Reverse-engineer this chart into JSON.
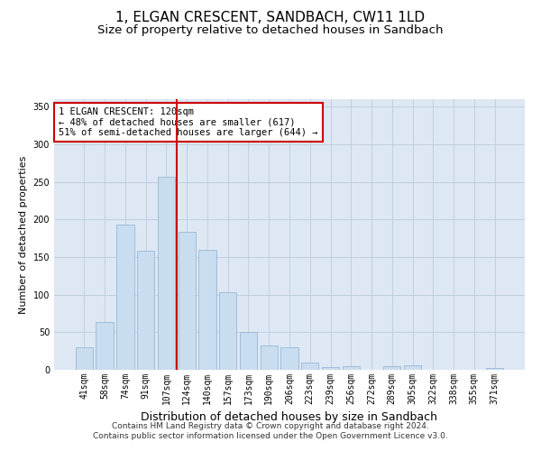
{
  "title": "1, ELGAN CRESCENT, SANDBACH, CW11 1LD",
  "subtitle": "Size of property relative to detached houses in Sandbach",
  "xlabel": "Distribution of detached houses by size in Sandbach",
  "ylabel": "Number of detached properties",
  "categories": [
    "41sqm",
    "58sqm",
    "74sqm",
    "91sqm",
    "107sqm",
    "124sqm",
    "140sqm",
    "157sqm",
    "173sqm",
    "190sqm",
    "206sqm",
    "223sqm",
    "239sqm",
    "256sqm",
    "272sqm",
    "289sqm",
    "305sqm",
    "322sqm",
    "338sqm",
    "355sqm",
    "371sqm"
  ],
  "values": [
    30,
    64,
    193,
    158,
    257,
    184,
    160,
    103,
    50,
    32,
    30,
    10,
    4,
    5,
    0,
    5,
    6,
    0,
    0,
    0,
    2
  ],
  "bar_color": "#c9ddf0",
  "bar_edge_color": "#a0bcd8",
  "vline_color": "#cc0000",
  "annotation_text": "1 ELGAN CRESCENT: 120sqm\n← 48% of detached houses are smaller (617)\n51% of semi-detached houses are larger (644) →",
  "annotation_box_color": "#ffffff",
  "annotation_box_edge": "#cc0000",
  "ylim": [
    0,
    360
  ],
  "yticks": [
    0,
    50,
    100,
    150,
    200,
    250,
    300,
    350
  ],
  "grid_color": "#c0cfe0",
  "background_color": "#dde8f4",
  "footer_text": "Contains HM Land Registry data © Crown copyright and database right 2024.\nContains public sector information licensed under the Open Government Licence v3.0.",
  "title_fontsize": 11,
  "subtitle_fontsize": 9.5,
  "xlabel_fontsize": 9,
  "ylabel_fontsize": 8,
  "tick_fontsize": 7,
  "annotation_fontsize": 7.5,
  "footer_fontsize": 6.5
}
